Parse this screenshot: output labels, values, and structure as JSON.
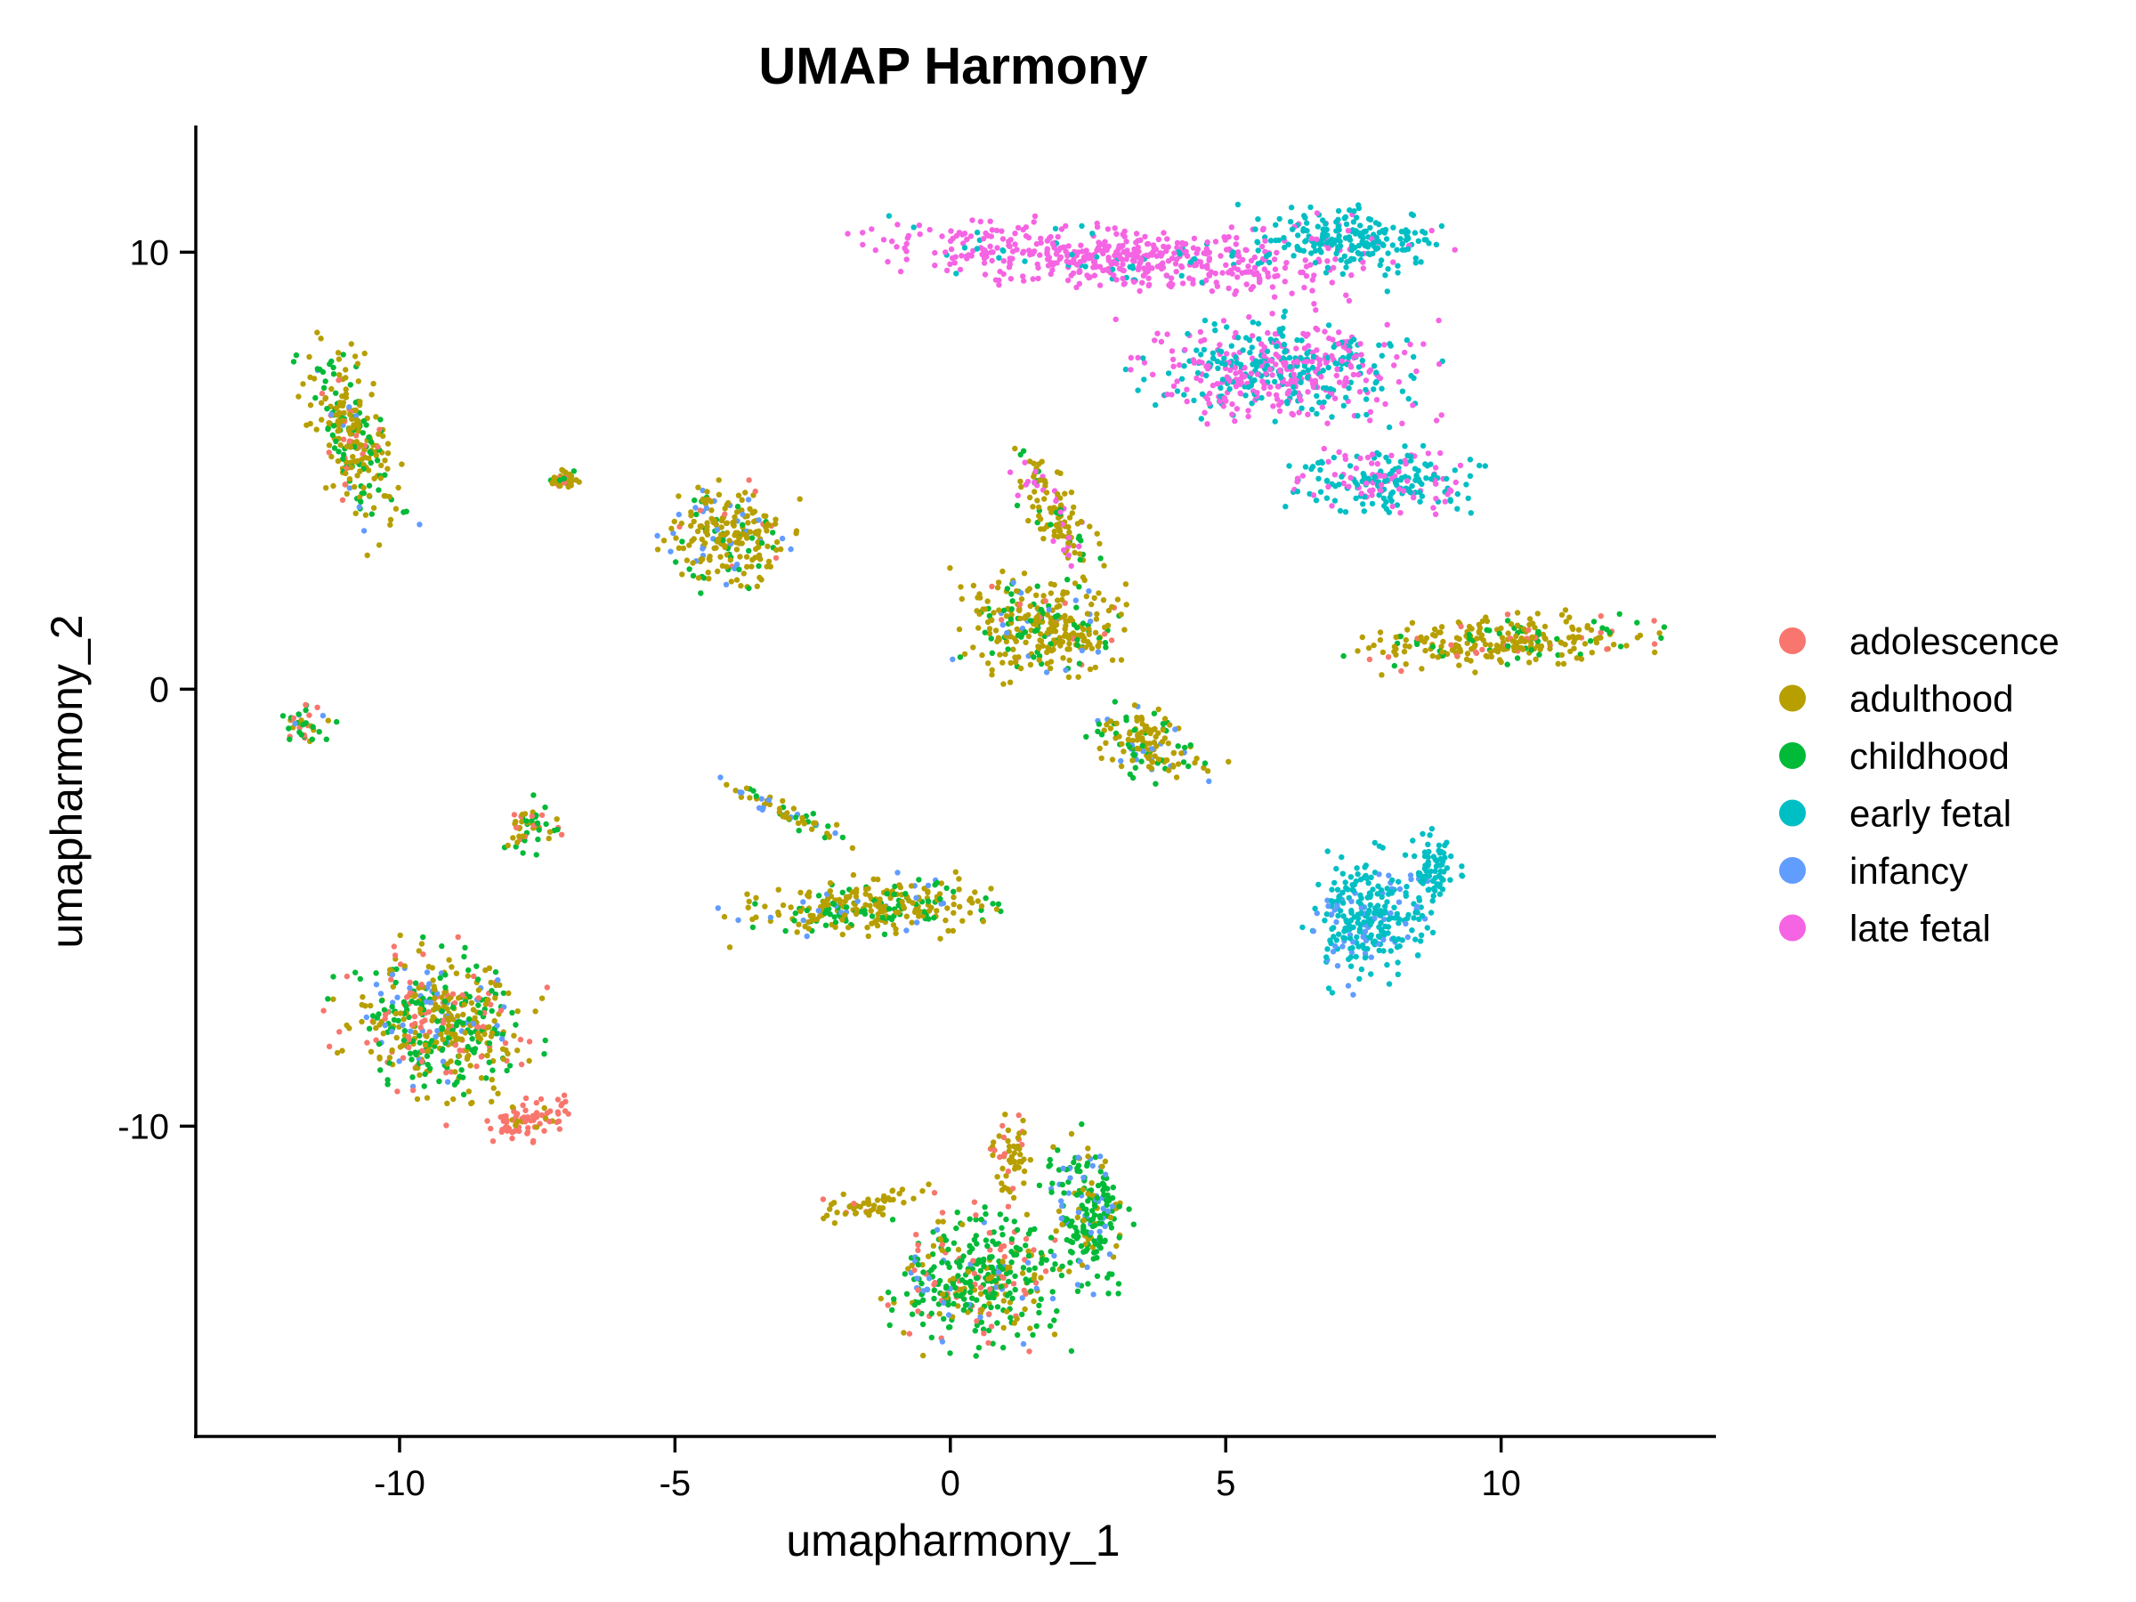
{
  "chart_data": {
    "type": "scatter",
    "title": "UMAP Harmony",
    "xlabel": "umapharmony_1",
    "ylabel": "umapharmony_2",
    "xlim": [
      -13.7,
      13.9
    ],
    "ylim": [
      -17.1,
      12.9
    ],
    "xticks": [
      -10,
      -5,
      0,
      5,
      10
    ],
    "yticks": [
      10,
      0,
      -10
    ],
    "xtick_labels": [
      "-10",
      "-5",
      "0",
      "5",
      "10"
    ],
    "ytick_labels": [
      "10",
      "0",
      "-10"
    ],
    "grid": false,
    "legend_position": "right",
    "series": [
      {
        "name": "adolescence",
        "color": "#F8766D"
      },
      {
        "name": "adulthood",
        "color": "#B79F00"
      },
      {
        "name": "childhood",
        "color": "#00BA38"
      },
      {
        "name": "early fetal",
        "color": "#00BFC4"
      },
      {
        "name": "infancy",
        "color": "#619CFF"
      },
      {
        "name": "late fetal",
        "color": "#F564E3"
      }
    ],
    "clusters": [
      {
        "cx": -10.9,
        "cy": 5.8,
        "sx": 0.55,
        "sy": 2.0,
        "rot": 0.25,
        "mix": {
          "adulthood": 0.6,
          "childhood": 0.28,
          "adolescence": 0.08,
          "infancy": 0.04
        }
      },
      {
        "cx": -7.0,
        "cy": 4.8,
        "sx": 0.25,
        "sy": 0.22,
        "rot": 0,
        "mix": {
          "adulthood": 0.7,
          "adolescence": 0.2,
          "childhood": 0.1
        }
      },
      {
        "cx": -11.7,
        "cy": -0.8,
        "sx": 0.4,
        "sy": 0.4,
        "rot": 0,
        "mix": {
          "childhood": 0.5,
          "adulthood": 0.2,
          "adolescence": 0.2,
          "infancy": 0.1
        }
      },
      {
        "cx": -7.6,
        "cy": -3.1,
        "sx": 0.45,
        "sy": 0.5,
        "rot": 0,
        "mix": {
          "childhood": 0.4,
          "adulthood": 0.3,
          "adolescence": 0.3
        }
      },
      {
        "cx": -9.3,
        "cy": -7.6,
        "sx": 1.5,
        "sy": 1.4,
        "rot": -0.75,
        "mix": {
          "adulthood": 0.4,
          "childhood": 0.3,
          "adolescence": 0.2,
          "infancy": 0.1
        }
      },
      {
        "cx": -7.6,
        "cy": -9.8,
        "sx": 0.8,
        "sy": 0.4,
        "rot": 0.3,
        "mix": {
          "adolescence": 0.9,
          "adulthood": 0.1
        }
      },
      {
        "cx": -4.0,
        "cy": 3.5,
        "sx": 1.0,
        "sy": 1.0,
        "rot": 0.1,
        "mix": {
          "adulthood": 0.7,
          "childhood": 0.15,
          "infancy": 0.1,
          "adolescence": 0.05
        }
      },
      {
        "cx": -1.5,
        "cy": -5.0,
        "sx": 2.0,
        "sy": 0.6,
        "rot": 0.05,
        "mix": {
          "adulthood": 0.6,
          "childhood": 0.3,
          "infancy": 0.1
        }
      },
      {
        "cx": -3.0,
        "cy": -2.8,
        "sx": 1.2,
        "sy": 0.2,
        "rot": -0.55,
        "mix": {
          "adulthood": 0.5,
          "childhood": 0.3,
          "infancy": 0.2
        }
      },
      {
        "cx": 0.5,
        "cy": -13.5,
        "sx": 1.3,
        "sy": 1.3,
        "rot": 0,
        "mix": {
          "childhood": 0.55,
          "adulthood": 0.2,
          "adolescence": 0.15,
          "infancy": 0.1
        }
      },
      {
        "cx": 2.5,
        "cy": -12.0,
        "sx": 0.6,
        "sy": 1.5,
        "rot": 0.1,
        "mix": {
          "childhood": 0.6,
          "adulthood": 0.2,
          "infancy": 0.2
        }
      },
      {
        "cx": -1.5,
        "cy": -11.8,
        "sx": 0.9,
        "sy": 0.25,
        "rot": 0.2,
        "mix": {
          "adulthood": 0.9,
          "adolescence": 0.1
        }
      },
      {
        "cx": 1.1,
        "cy": -10.8,
        "sx": 0.3,
        "sy": 0.8,
        "rot": 0,
        "mix": {
          "adulthood": 0.8,
          "adolescence": 0.2
        }
      },
      {
        "cx": 1.7,
        "cy": 1.5,
        "sx": 1.3,
        "sy": 1.0,
        "rot": 0,
        "mix": {
          "adulthood": 0.7,
          "childhood": 0.2,
          "adolescence": 0.05,
          "infancy": 0.05
        }
      },
      {
        "cx": 3.7,
        "cy": -1.3,
        "sx": 1.0,
        "sy": 0.6,
        "rot": -0.5,
        "mix": {
          "adulthood": 0.6,
          "childhood": 0.3,
          "infancy": 0.1
        }
      },
      {
        "cx": 1.8,
        "cy": 4.2,
        "sx": 0.4,
        "sy": 1.3,
        "rot": 0.4,
        "mix": {
          "adulthood": 0.6,
          "late fetal": 0.2,
          "childhood": 0.2
        }
      },
      {
        "cx": 3.0,
        "cy": 9.9,
        "sx": 3.6,
        "sy": 0.6,
        "rot": -0.08,
        "mix": {
          "late fetal": 0.9,
          "early fetal": 0.1
        }
      },
      {
        "cx": 7.2,
        "cy": 10.3,
        "sx": 1.6,
        "sy": 0.6,
        "rot": 0,
        "mix": {
          "early fetal": 0.85,
          "late fetal": 0.15
        }
      },
      {
        "cx": 6.0,
        "cy": 7.3,
        "sx": 2.2,
        "sy": 1.0,
        "rot": 0,
        "mix": {
          "early fetal": 0.5,
          "late fetal": 0.5
        }
      },
      {
        "cx": 7.8,
        "cy": 4.8,
        "sx": 1.5,
        "sy": 0.6,
        "rot": 0,
        "mix": {
          "early fetal": 0.7,
          "late fetal": 0.3
        }
      },
      {
        "cx": 10.0,
        "cy": 1.1,
        "sx": 2.2,
        "sy": 0.5,
        "rot": 0.08,
        "mix": {
          "adulthood": 0.7,
          "childhood": 0.2,
          "adolescence": 0.1
        }
      },
      {
        "cx": 7.6,
        "cy": -5.2,
        "sx": 0.9,
        "sy": 1.3,
        "rot": 0,
        "mix": {
          "early fetal": 0.8,
          "infancy": 0.2
        }
      },
      {
        "cx": 8.8,
        "cy": -4.1,
        "sx": 0.4,
        "sy": 0.7,
        "rot": 0,
        "mix": {
          "early fetal": 1.0
        }
      }
    ]
  }
}
